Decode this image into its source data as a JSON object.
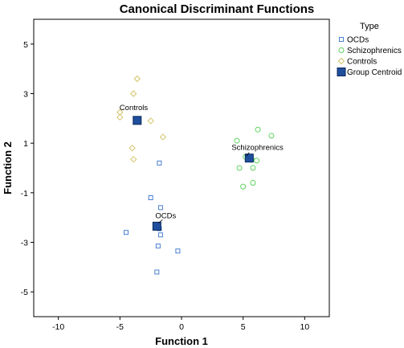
{
  "chart_data": {
    "type": "scatter",
    "title": "Canonical Discriminant Functions",
    "xlabel": "Function 1",
    "ylabel": "Function 2",
    "xlim": [
      -12,
      12
    ],
    "ylim": [
      -6,
      6
    ],
    "xticks": [
      -10,
      -5,
      0,
      5,
      10
    ],
    "yticks": [
      5,
      3,
      1,
      -1,
      -3,
      -5
    ],
    "grid": false,
    "legend_title": "Type",
    "legend_position": "right",
    "series": [
      {
        "name": "OCDs",
        "marker": "square-open",
        "color": "#4a7fd4",
        "points": [
          [
            -1.8,
            0.2
          ],
          [
            -2.5,
            -1.2
          ],
          [
            -1.7,
            -1.6
          ],
          [
            -4.5,
            -2.6
          ],
          [
            -1.8,
            -2.45
          ],
          [
            -1.7,
            -2.7
          ],
          [
            -1.9,
            -3.15
          ],
          [
            -0.3,
            -3.35
          ],
          [
            -2.0,
            -4.2
          ]
        ]
      },
      {
        "name": "Schizophrenics",
        "marker": "circle-open",
        "color": "#5fd35f",
        "points": [
          [
            4.5,
            1.1
          ],
          [
            6.2,
            1.55
          ],
          [
            7.3,
            1.3
          ],
          [
            5.2,
            0.45
          ],
          [
            5.7,
            0.35
          ],
          [
            6.1,
            0.3
          ],
          [
            4.7,
            0.0
          ],
          [
            5.8,
            0.0
          ],
          [
            5.8,
            -0.6
          ],
          [
            5.0,
            -0.75
          ]
        ]
      },
      {
        "name": "Controls",
        "marker": "diamond-open",
        "color": "#d4c46a",
        "points": [
          [
            -3.6,
            3.6
          ],
          [
            -3.9,
            3.0
          ],
          [
            -5.0,
            2.25
          ],
          [
            -5.0,
            2.05
          ],
          [
            -2.5,
            1.9
          ],
          [
            -1.5,
            1.25
          ],
          [
            -4.0,
            0.8
          ],
          [
            -3.9,
            0.35
          ]
        ]
      },
      {
        "name": "Group Centroid",
        "marker": "square-filled",
        "color": "#1f4e9c",
        "points": [
          [
            -3.6,
            1.92
          ],
          [
            5.5,
            0.4
          ],
          [
            -2.0,
            -2.35
          ]
        ]
      }
    ],
    "annotations": [
      {
        "text": "Controls",
        "x": -3.6,
        "y": 1.92
      },
      {
        "text": "Schizophrenics",
        "x": 5.5,
        "y": 0.4
      },
      {
        "text": "OCDs",
        "x": -2.0,
        "y": -2.35
      }
    ]
  }
}
